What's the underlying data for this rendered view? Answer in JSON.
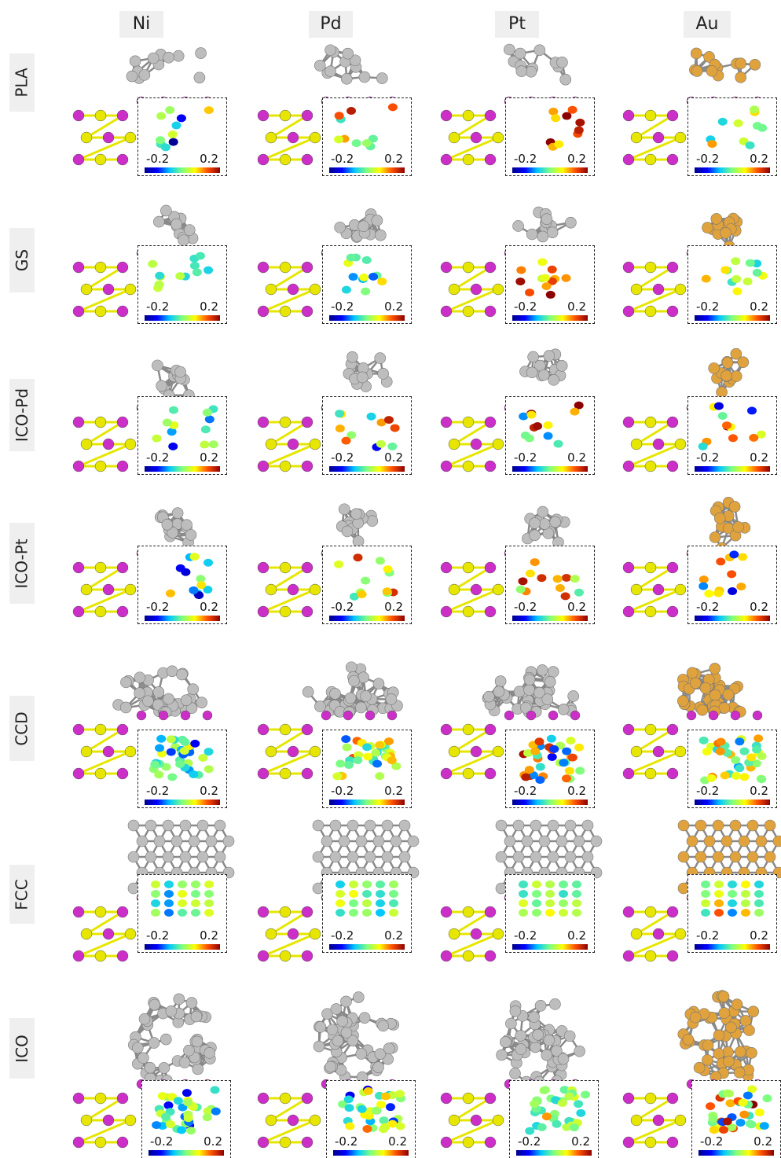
{
  "columns": [
    "Ni",
    "Pd",
    "Pt",
    "Au"
  ],
  "rows": [
    "PLA",
    "GS",
    "ICO-Pd",
    "ICO-Pt",
    "CCD",
    "FCC",
    "ICO"
  ],
  "colorbar": {
    "min_label": "-0.2",
    "max_label": "0.2",
    "colors": [
      "#00008b",
      "#0000ff",
      "#00c8ff",
      "#7fff7f",
      "#ffff00",
      "#ff5000",
      "#8b0000"
    ]
  },
  "colors": {
    "substrate_metal": "#cc2ec8",
    "substrate_nonmetal": "#e6e600",
    "cluster_Ni": "#bdbdbd",
    "cluster_Pd": "#bdbdbd",
    "cluster_Pt": "#bdbdbd",
    "cluster_Au": "#e0a23c",
    "bond": "#8a8a8a"
  },
  "inset_atoms": {
    "PLA": {
      "Ni": [
        0.0,
        -0.05,
        0.05,
        0.0,
        -0.15
      ],
      "Pd": [
        0.0,
        0.1,
        0.18,
        -0.05,
        0.05
      ],
      "Pt": [
        0.2,
        0.12,
        0.15,
        0.18,
        0.1
      ],
      "Au": [
        0.0,
        0.02,
        0.05,
        0.0,
        -0.02
      ]
    },
    "GS": {
      "Ni": [
        0.0,
        0.0,
        0.02,
        -0.02,
        0.0
      ],
      "Pd": [
        0.0,
        -0.05,
        0.08,
        0.0,
        -0.05
      ],
      "Pt": [
        0.1,
        0.15,
        0.05,
        0.12,
        0.08
      ],
      "Au": [
        0.05,
        -0.05,
        0.08,
        0.0,
        0.05
      ]
    },
    "ICO-Pd": {
      "Ni": [
        0.0,
        0.02,
        -0.15,
        -0.05,
        0.05
      ],
      "Pd": [
        0.1,
        0.15,
        -0.1,
        0.05,
        0.0
      ],
      "Pt": [
        0.15,
        -0.05,
        0.2,
        0.05,
        0.1
      ],
      "Au": [
        0.15,
        0.1,
        -0.15,
        0.05,
        0.0
      ]
    },
    "ICO-Pt": {
      "Ni": [
        -0.1,
        0.05,
        -0.15,
        0.0,
        -0.05
      ],
      "Pd": [
        0.1,
        0.0,
        0.05,
        -0.05,
        0.12
      ],
      "Pt": [
        0.15,
        0.1,
        0.05,
        0.12,
        0.0
      ],
      "Au": [
        0.1,
        -0.1,
        0.15,
        0.05,
        0.08
      ]
    },
    "CCD": {
      "Ni": [
        0.0,
        -0.1,
        0.0,
        -0.05,
        0.02
      ],
      "Pd": [
        0.0,
        0.1,
        -0.05,
        0.05,
        0.0
      ],
      "Pt": [
        0.05,
        0.15,
        0.1,
        -0.1,
        0.0
      ],
      "Au": [
        0.0,
        0.05,
        0.1,
        -0.05,
        0.02
      ]
    },
    "FCC": {
      "Ni": [
        0.0,
        -0.05,
        0.0,
        0.02,
        0.0
      ],
      "Pd": [
        0.0,
        0.02,
        0.0,
        -0.02,
        0.0
      ],
      "Pt": [
        0.0,
        0.0,
        0.02,
        -0.02,
        0.0
      ],
      "Au": [
        0.0,
        0.1,
        -0.05,
        0.05,
        0.0
      ]
    },
    "ICO": {
      "Ni": [
        0.0,
        -0.1,
        0.05,
        0.0,
        -0.05
      ],
      "Pd": [
        0.0,
        0.05,
        -0.1,
        0.0,
        0.1
      ],
      "Pt": [
        0.0,
        0.0,
        0.02,
        0.05,
        0.0
      ],
      "Au": [
        0.0,
        0.1,
        0.05,
        -0.05,
        0.15
      ]
    }
  }
}
